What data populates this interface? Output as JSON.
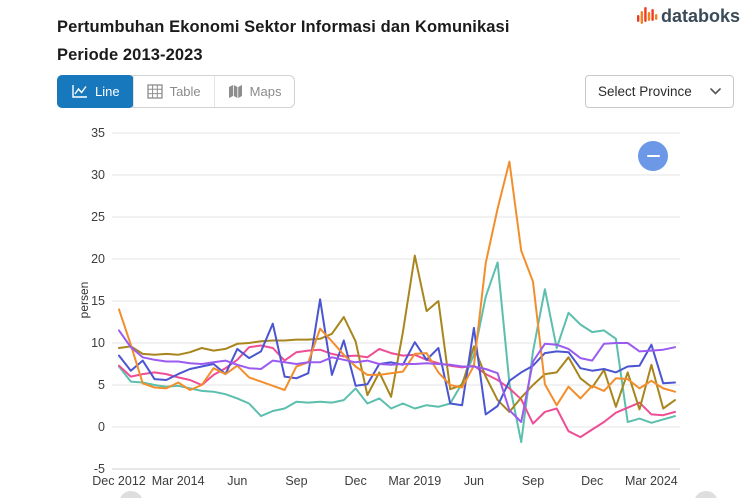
{
  "header": {
    "title_line1": "Pertumbuhan Ekonomi Sektor Informasi dan Komunikasi",
    "title_line2": "Periode 2013-2023",
    "brand": "databoks"
  },
  "toolbar": {
    "tabs": [
      {
        "label": "Line",
        "active": true
      },
      {
        "label": "Table",
        "active": false
      },
      {
        "label": "Maps",
        "active": false
      }
    ],
    "province_selector": "Select Province"
  },
  "colors": {
    "active_tab": "#1878be",
    "fab": "#6d98e8",
    "grid": "#e5e5e5",
    "axis_text": "#3d3d3d"
  },
  "chart_data": {
    "type": "line",
    "title": "Pertumbuhan Ekonomi Sektor Informasi dan Komunikasi Periode 2013-2023",
    "xlabel": "",
    "ylabel": "persen",
    "ylim": [
      -5,
      35
    ],
    "ytick_step": 5,
    "y_tick_labels": [
      "-5",
      "0",
      "5",
      "10",
      "15",
      "20",
      "25",
      "30",
      "35"
    ],
    "grid": true,
    "legend": "none",
    "x_unit": "quarter",
    "n_points": 48,
    "x_tick_labels": [
      "Dec 2012",
      "Mar 2014",
      "Jun",
      "Sep",
      "Dec",
      "Mar 2019",
      "Jun",
      "Sep",
      "Dec",
      "Mar 2024"
    ],
    "x_tick_indices": [
      0,
      5,
      10,
      15,
      20,
      25,
      30,
      35,
      40,
      45
    ],
    "series": [
      {
        "name": "teal",
        "color": "#5cbfae",
        "values": [
          7.2,
          5.4,
          5.3,
          5.0,
          4.8,
          4.9,
          4.6,
          4.3,
          4.2,
          3.9,
          3.4,
          2.8,
          1.3,
          1.9,
          2.2,
          3.0,
          2.9,
          3.0,
          2.9,
          3.2,
          4.6,
          2.8,
          3.4,
          2.2,
          2.8,
          2.2,
          2.6,
          2.4,
          2.8,
          5.2,
          8.6,
          15.5,
          19.6,
          5.2,
          -1.8,
          9.0,
          16.4,
          9.4,
          13.6,
          12.2,
          11.3,
          11.5,
          10.5,
          0.6,
          1.0,
          0.5,
          0.9,
          1.3
        ]
      },
      {
        "name": "pink",
        "color": "#ee4e96",
        "values": [
          7.3,
          6.0,
          6.3,
          6.5,
          6.3,
          5.9,
          5.6,
          5.0,
          6.2,
          7.0,
          8.0,
          9.5,
          9.7,
          9.4,
          7.9,
          8.9,
          9.1,
          9.2,
          8.7,
          8.4,
          8.5,
          8.3,
          9.3,
          8.8,
          8.5,
          8.6,
          8.0,
          7.6,
          7.3,
          7.1,
          7.3,
          6.3,
          5.6,
          4.6,
          3.3,
          0.4,
          1.8,
          2.2,
          -0.5,
          -1.2,
          -0.3,
          0.6,
          1.7,
          2.3,
          2.9,
          1.5,
          1.4,
          1.8
        ]
      },
      {
        "name": "olive",
        "color": "#a8861d",
        "values": [
          9.4,
          9.6,
          8.7,
          8.6,
          8.7,
          8.6,
          8.9,
          9.4,
          9.1,
          9.3,
          9.9,
          10.0,
          10.2,
          10.3,
          10.3,
          10.4,
          10.4,
          10.5,
          11.1,
          13.1,
          10.2,
          3.8,
          6.5,
          3.6,
          11.3,
          20.4,
          13.8,
          15.0,
          4.5,
          5.0,
          9.6,
          6.0,
          3.2,
          1.8,
          3.5,
          5.0,
          6.3,
          6.5,
          8.3,
          5.8,
          4.7,
          6.8,
          2.4,
          6.5,
          2.1,
          7.4,
          2.2,
          3.2
        ]
      },
      {
        "name": "blue",
        "color": "#4b55d2",
        "values": [
          8.5,
          6.7,
          7.9,
          5.7,
          5.6,
          6.3,
          6.9,
          7.2,
          7.5,
          6.3,
          9.3,
          8.2,
          9.0,
          12.3,
          6.0,
          5.8,
          6.4,
          15.2,
          6.2,
          10.3,
          4.9,
          5.1,
          7.5,
          7.7,
          7.4,
          10.1,
          8.0,
          9.4,
          2.8,
          2.6,
          11.8,
          1.5,
          2.5,
          5.5,
          6.5,
          7.3,
          8.8,
          9.0,
          8.9,
          7.0,
          6.7,
          6.9,
          6.5,
          7.2,
          7.3,
          9.8,
          5.2,
          5.3
        ]
      },
      {
        "name": "orange",
        "color": "#f28e2c",
        "values": [
          14.0,
          9.8,
          5.2,
          4.7,
          4.6,
          5.3,
          4.4,
          5.0,
          7.0,
          6.3,
          7.3,
          5.9,
          5.4,
          4.9,
          4.4,
          7.2,
          7.7,
          11.7,
          10.2,
          8.6,
          7.2,
          6.2,
          6.2,
          6.4,
          6.6,
          8.7,
          8.8,
          6.5,
          5.0,
          4.7,
          7.3,
          19.5,
          26.0,
          31.6,
          21.0,
          17.3,
          5.1,
          2.6,
          4.8,
          3.4,
          4.9,
          4.3,
          5.8,
          5.7,
          4.6,
          5.5,
          4.6,
          4.2
        ]
      },
      {
        "name": "purple",
        "color": "#9b5bf0",
        "values": [
          11.5,
          9.5,
          8.3,
          8.0,
          7.8,
          7.8,
          7.6,
          7.5,
          7.7,
          7.9,
          7.4,
          7.0,
          6.9,
          7.9,
          7.7,
          7.5,
          7.7,
          7.7,
          8.3,
          8.0,
          7.7,
          7.9,
          7.5,
          7.4,
          7.5,
          7.5,
          7.6,
          7.5,
          7.4,
          7.2,
          7.2,
          6.9,
          6.4,
          2.0,
          0.6,
          7.8,
          9.9,
          9.8,
          9.3,
          8.2,
          7.9,
          9.9,
          10.0,
          10.0,
          9.0,
          9.1,
          9.2,
          9.5
        ]
      }
    ]
  }
}
